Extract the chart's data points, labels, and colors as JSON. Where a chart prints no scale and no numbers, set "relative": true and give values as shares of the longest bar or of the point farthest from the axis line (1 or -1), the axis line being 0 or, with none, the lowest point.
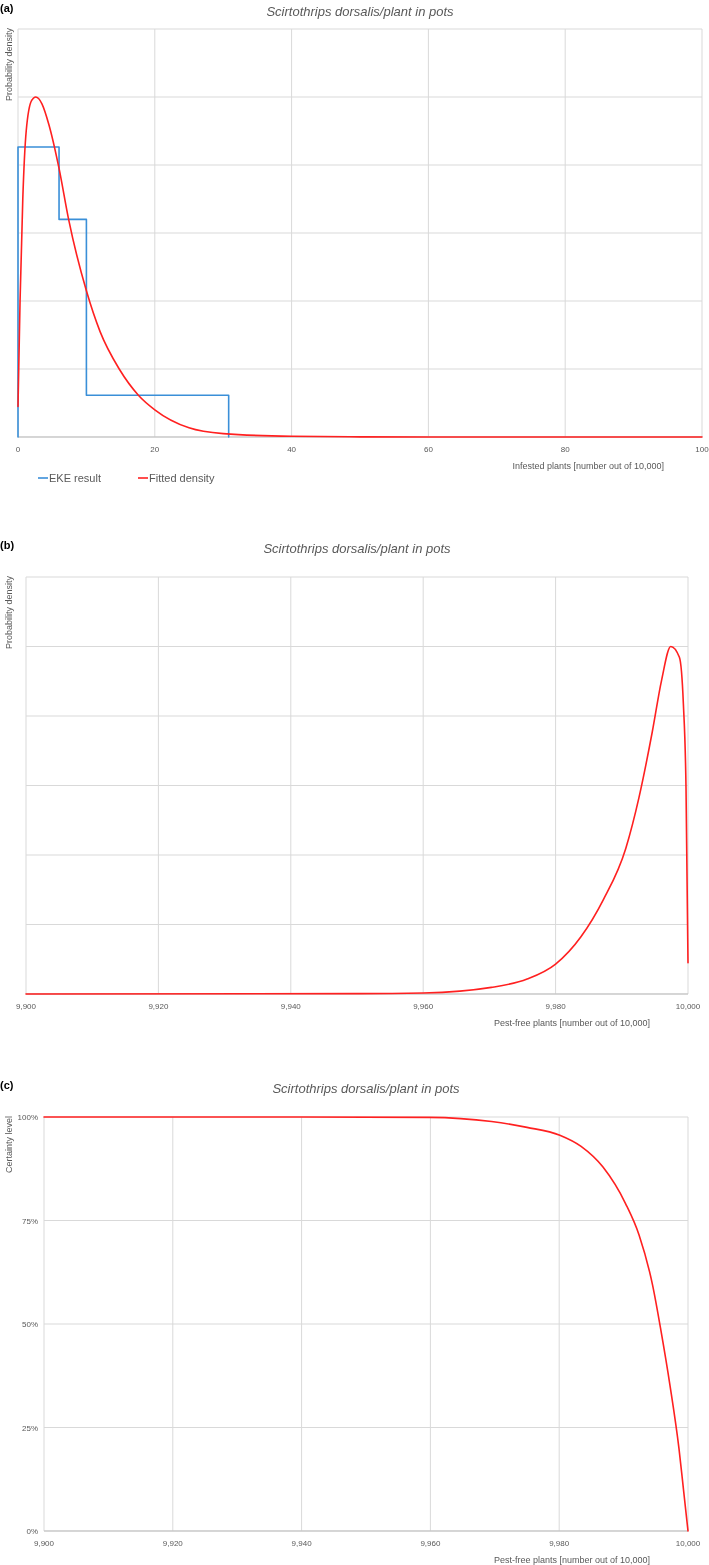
{
  "chart_data": [
    {
      "type": "line",
      "title": "Scirtothrips dorsalis/plant in pots",
      "annotations": [
        "(a)"
      ],
      "xlabel": "Infested plants [number out of 10,000]",
      "ylabel": "Probability density",
      "relative": true,
      "xlim": [
        0,
        100
      ],
      "xticks": [
        0,
        20,
        40,
        60,
        80,
        100
      ],
      "grid": true,
      "legend": "bottom left",
      "series": [
        {
          "name": "EKE result",
          "color": "#3a8fd8",
          "x": [
            0,
            0,
            6,
            6,
            10,
            10,
            30.8,
            30.8
          ],
          "values": [
            0,
            0.853,
            0.853,
            0.64,
            0.64,
            0.123,
            0.123,
            0
          ]
        },
        {
          "name": "Fitted density",
          "color": "#ff2020",
          "x": [
            0,
            0.3,
            0.7,
            1.2,
            2,
            2.6,
            3.5,
            4.5,
            6,
            7.4,
            10,
            12,
            14.8,
            17.6,
            20,
            25,
            30,
            40,
            50,
            60,
            80,
            100
          ],
          "values": [
            0.09,
            0.4,
            0.7,
            0.9,
            0.99,
            1,
            0.98,
            0.92,
            0.79,
            0.64,
            0.43,
            0.31,
            0.2,
            0.123,
            0.08,
            0.027,
            0.01,
            0.002,
            0.0005,
            0,
            0,
            0
          ]
        }
      ]
    },
    {
      "type": "line",
      "title": "Scirtothrips dorsalis/plant in pots",
      "annotations": [
        "(b)"
      ],
      "xlabel": "Pest-free plants [number out of 10,000]",
      "ylabel": "Probability density",
      "relative": true,
      "xlim": [
        9900,
        10000
      ],
      "xticks": [
        {
          "value": 9900,
          "label": "9,900"
        },
        {
          "value": 9920,
          "label": "9,920"
        },
        {
          "value": 9940,
          "label": "9,940"
        },
        {
          "value": 9960,
          "label": "9,960"
        },
        {
          "value": 9980,
          "label": "9,980"
        },
        {
          "value": 10000,
          "label": "10,000"
        }
      ],
      "grid": true,
      "series": [
        {
          "color": "#ff2020",
          "x": [
            9900,
            9950.1,
            9960,
            9970.3,
            9975.7,
            9980,
            9983.8,
            9987.2,
            9990.6,
            9992.6,
            9994.6,
            9996,
            9997.4,
            9998.7,
            9999.3,
            9999.7,
            10000
          ],
          "values": [
            0,
            0.001,
            0.003,
            0.019,
            0.043,
            0.086,
            0.164,
            0.271,
            0.419,
            0.566,
            0.754,
            0.902,
            1,
            0.969,
            0.835,
            0.593,
            0.09
          ]
        }
      ]
    },
    {
      "type": "line",
      "title": "Scirtothrips dorsalis/plant in pots",
      "annotations": [
        "(c)"
      ],
      "xlabel": "Pest-free plants [number out of 10,000]",
      "ylabel": "Certainty level",
      "xlim": [
        9900,
        10000
      ],
      "xticks": [
        {
          "value": 9900,
          "label": "9,900"
        },
        {
          "value": 9920,
          "label": "9,920"
        },
        {
          "value": 9940,
          "label": "9,940"
        },
        {
          "value": 9960,
          "label": "9,960"
        },
        {
          "value": 9980,
          "label": "9,980"
        },
        {
          "value": 10000,
          "label": "10,000"
        }
      ],
      "ylim": [
        0,
        100
      ],
      "yticks": [
        {
          "value": 0,
          "label": "0%"
        },
        {
          "value": 25,
          "label": "25%"
        },
        {
          "value": 50,
          "label": "50%"
        },
        {
          "value": 75,
          "label": "75%"
        },
        {
          "value": 100,
          "label": "100%"
        }
      ],
      "grid": true,
      "series": [
        {
          "color": "#ff2020",
          "x": [
            9900,
            9940,
            9959.8,
            9969.5,
            9975,
            9980.1,
            9983.4,
            9986.8,
            9990.3,
            9992.4,
            9994.5,
            9995.8,
            9997.2,
            9998.6,
            9999.3,
            10000
          ],
          "values": [
            100,
            100,
            99.9,
            98.9,
            97.5,
            95.6,
            92.9,
            87.9,
            79.1,
            71.5,
            59.4,
            48.4,
            35.2,
            19.9,
            10,
            0
          ]
        }
      ]
    }
  ]
}
